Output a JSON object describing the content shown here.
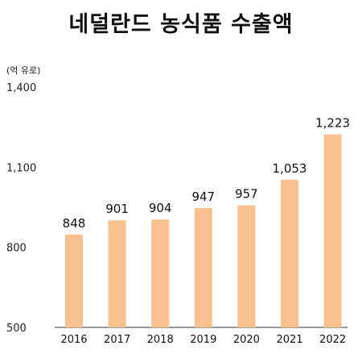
{
  "chart_data": {
    "type": "bar",
    "title": "네덜란드 농식품 수출액",
    "unit_label": "(억 유로)",
    "categories": [
      "2016",
      "2017",
      "2018",
      "2019",
      "2020",
      "2021",
      "2022"
    ],
    "values": [
      848,
      901,
      904,
      947,
      957,
      1053,
      1223
    ],
    "data_labels": [
      "848",
      "901",
      "904",
      "947",
      "957",
      "1,053",
      "1,223"
    ],
    "yticks": [
      500,
      800,
      1100,
      1400
    ],
    "ytick_labels": [
      "500",
      "800",
      "1,100",
      "1,400"
    ],
    "ylim": [
      500,
      1400
    ],
    "grid": false,
    "legend": "none",
    "bar_color": "#F8C18F"
  }
}
